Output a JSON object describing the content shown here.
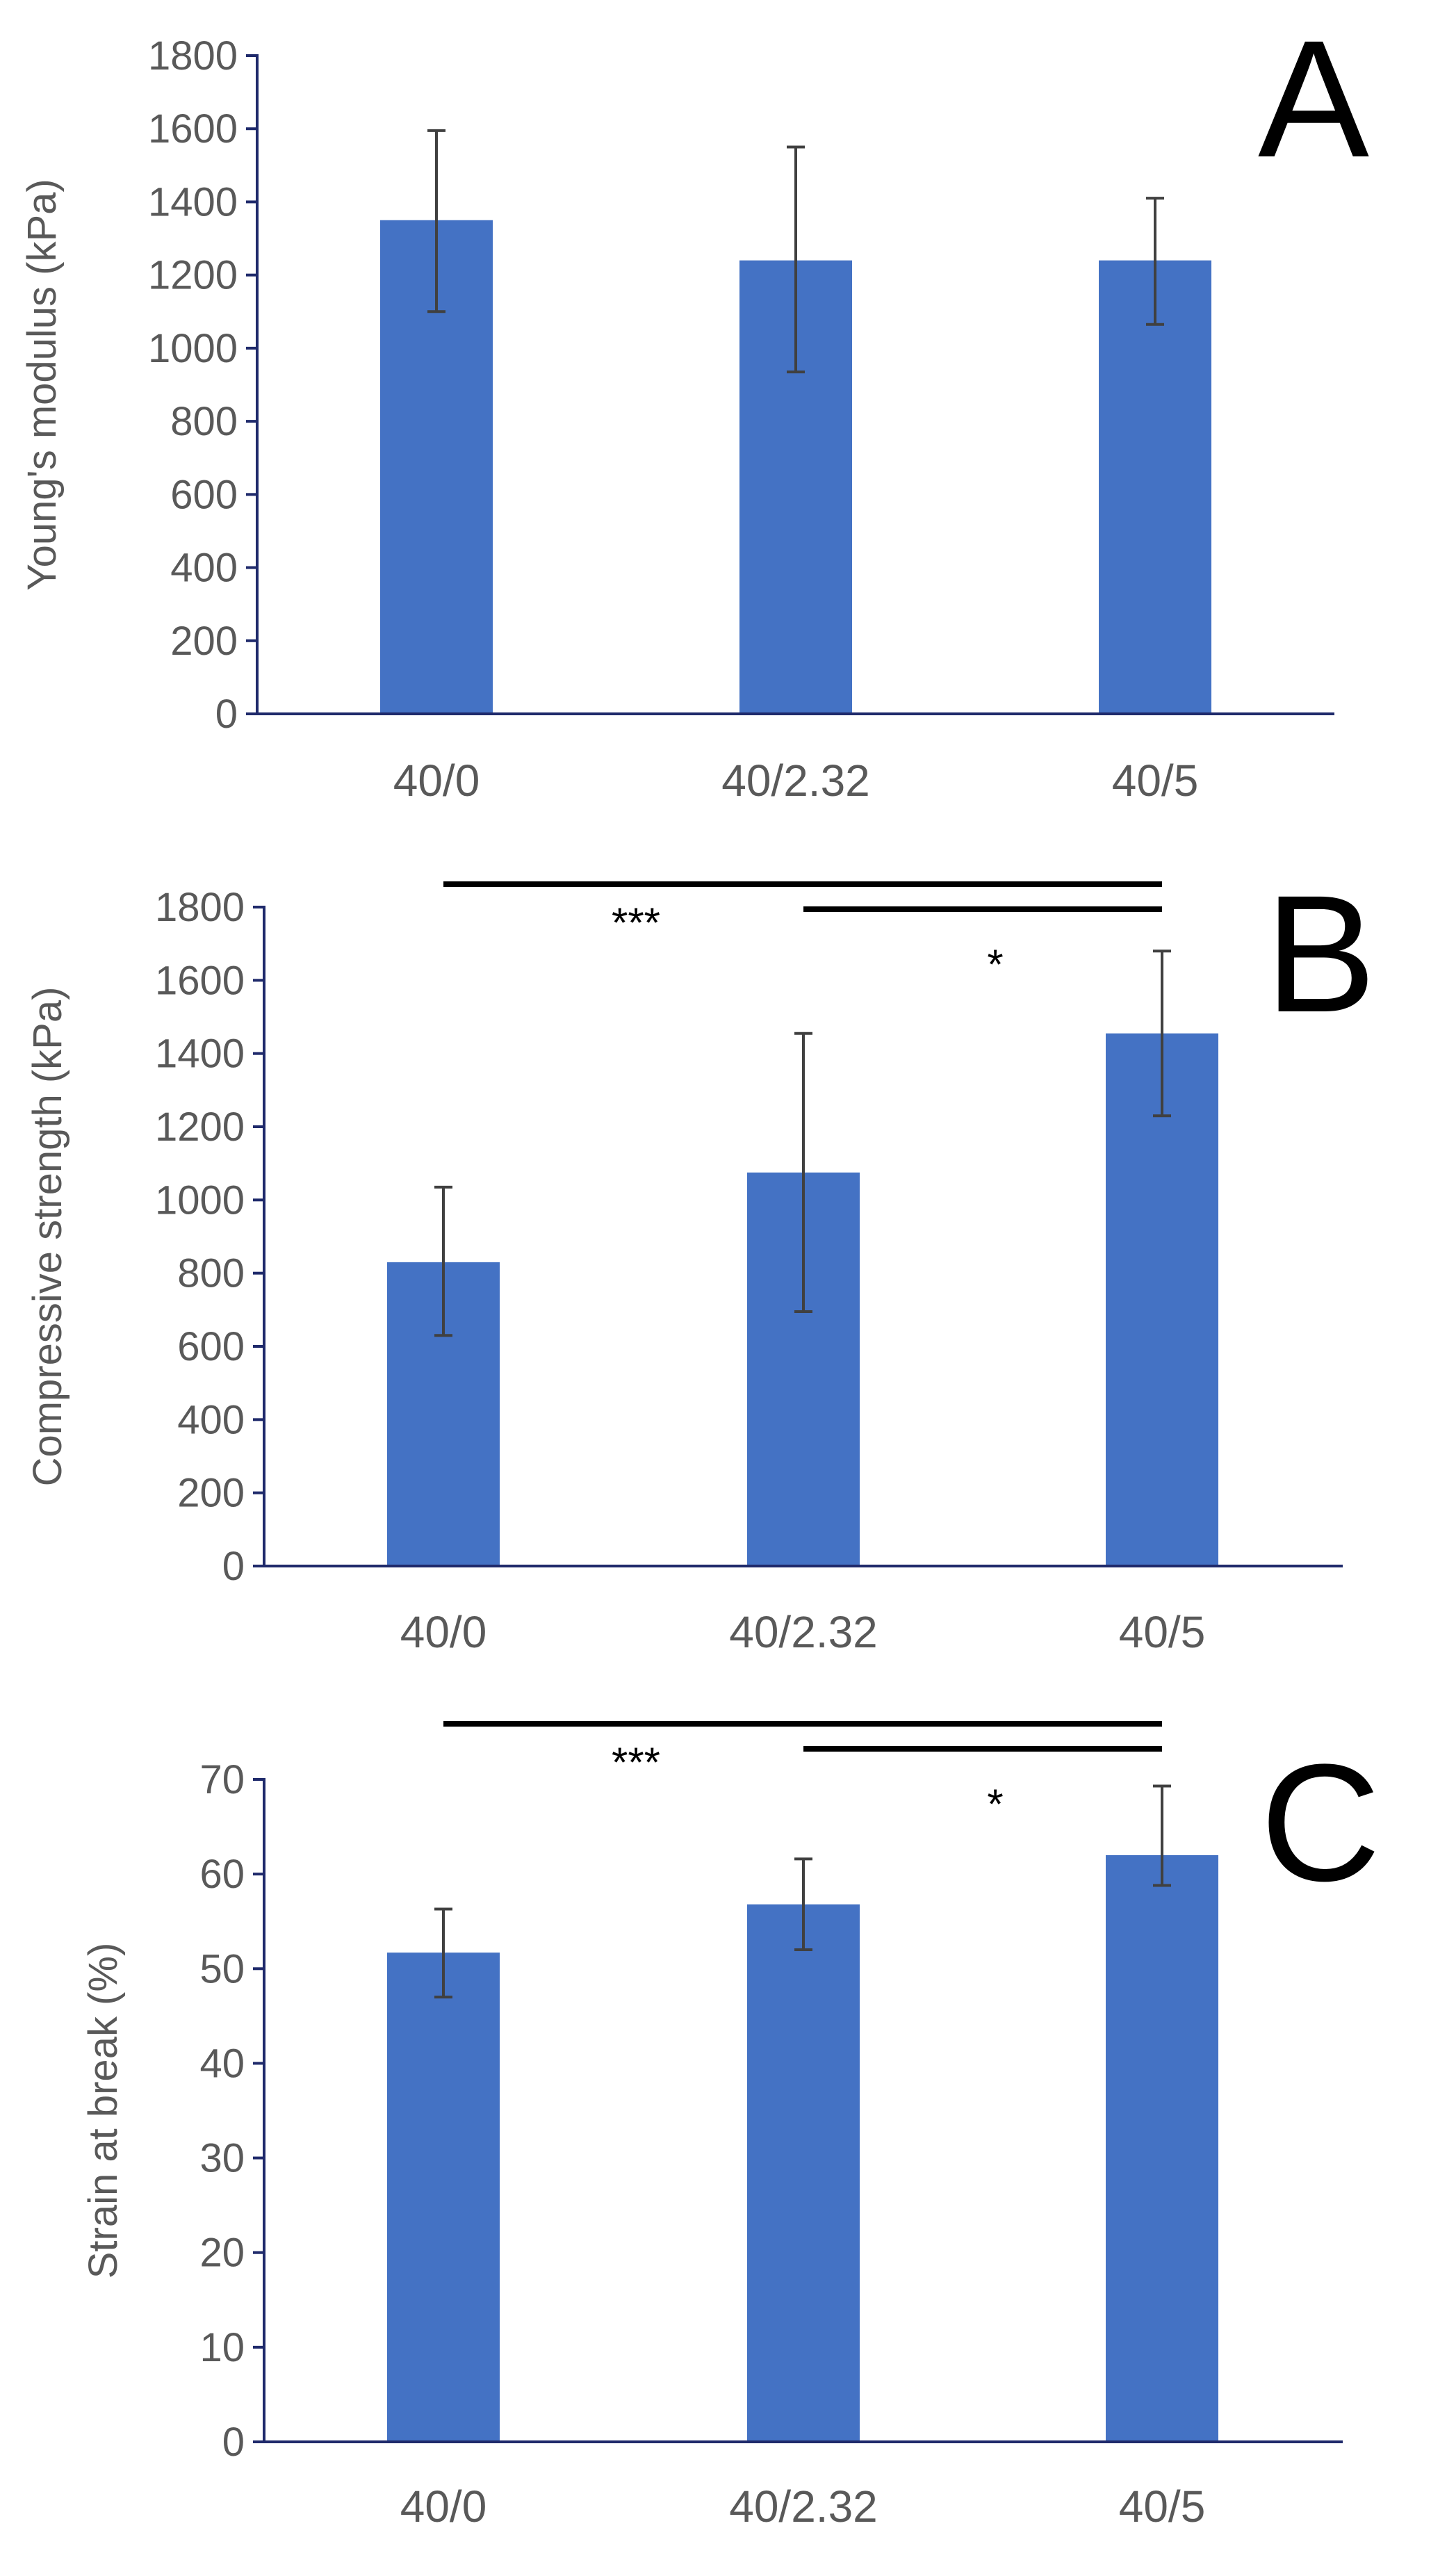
{
  "chart_data": [
    {
      "type": "bar",
      "panel_label": "A",
      "categories": [
        "40/0",
        "40/2.32",
        "40/5"
      ],
      "values": [
        1350,
        1240,
        1240
      ],
      "error_upper": [
        1595,
        1550,
        1410
      ],
      "error_lower": [
        1100,
        935,
        1065
      ],
      "ylabel": "Young's modulus (kPa)",
      "ylim": [
        0,
        1800
      ],
      "yticks": [
        "0",
        "200",
        "400",
        "600",
        "800",
        "1000",
        "1200",
        "1400",
        "1600",
        "1800"
      ],
      "bar_color": "#4472C4",
      "significance": []
    },
    {
      "type": "bar",
      "panel_label": "B",
      "categories": [
        "40/0",
        "40/2.32",
        "40/5"
      ],
      "values": [
        830,
        1075,
        1455
      ],
      "error_upper": [
        1035,
        1455,
        1680
      ],
      "error_lower": [
        630,
        695,
        1230
      ],
      "ylabel": "Compressive strength  (kPa)",
      "ylim": [
        0,
        1800
      ],
      "yticks": [
        "0",
        "200",
        "400",
        "600",
        "800",
        "1000",
        "1200",
        "1400",
        "1600",
        "1800"
      ],
      "bar_color": "#4472C4",
      "significance": [
        {
          "from": "40/0",
          "to": "40/5",
          "label": "***"
        },
        {
          "from": "40/2.32",
          "to": "40/5",
          "label": "*"
        }
      ]
    },
    {
      "type": "bar",
      "panel_label": "C",
      "categories": [
        "40/0",
        "40/2.32",
        "40/5"
      ],
      "values": [
        51.7,
        56.8,
        62
      ],
      "error_upper": [
        56.3,
        61.6,
        69.3
      ],
      "error_lower": [
        47,
        52,
        58.8
      ],
      "ylabel": "Strain at break  (%)",
      "ylim": [
        0,
        70
      ],
      "yticks": [
        "0",
        "10",
        "20",
        "30",
        "40",
        "50",
        "60",
        "70"
      ],
      "bar_color": "#4472C4",
      "significance": [
        {
          "from": "40/0",
          "to": "40/5",
          "label": "***"
        },
        {
          "from": "40/2.32",
          "to": "40/5",
          "label": "*"
        }
      ]
    }
  ]
}
